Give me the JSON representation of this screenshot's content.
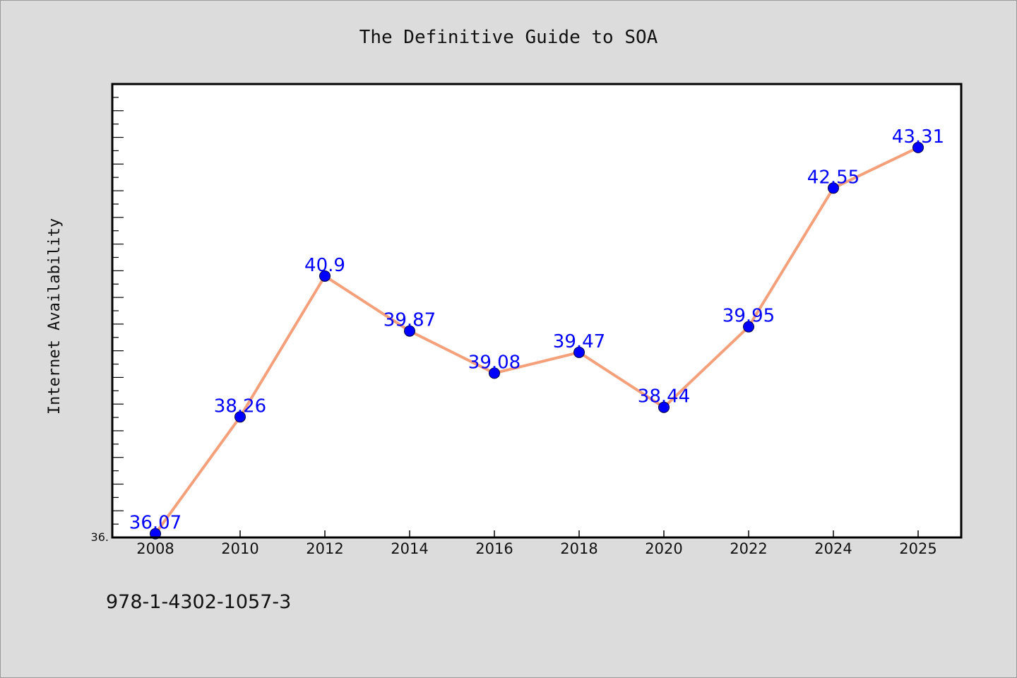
{
  "chart_data": {
    "type": "line",
    "title": "The Definitive Guide to SOA",
    "ylabel": "Internet Availability",
    "xlabel": "",
    "x": [
      "2008",
      "2010",
      "2012",
      "2014",
      "2016",
      "2018",
      "2020",
      "2022",
      "2024",
      "2025"
    ],
    "series": [
      {
        "values": [
          36.07,
          38.26,
          40.9,
          39.87,
          39.08,
          39.47,
          38.44,
          39.95,
          42.55,
          43.31
        ],
        "data_labels": [
          "36.07",
          "38.26",
          "40.9",
          "39.87",
          "39.08",
          "39.47",
          "38.44",
          "39.95",
          "42.55",
          "43.31"
        ]
      }
    ],
    "ylim": [
      36.0,
      44.5
    ],
    "y_tick_labels": [
      "36."
    ],
    "grid": false,
    "line_color": "#f4a07a",
    "marker_color": "#0000ff",
    "label_color": "#0000ff"
  },
  "footer": {
    "isbn": "978-1-4302-1057-3"
  },
  "colors": {
    "background": "#dcdcdc",
    "plot_background": "#ffffff"
  }
}
